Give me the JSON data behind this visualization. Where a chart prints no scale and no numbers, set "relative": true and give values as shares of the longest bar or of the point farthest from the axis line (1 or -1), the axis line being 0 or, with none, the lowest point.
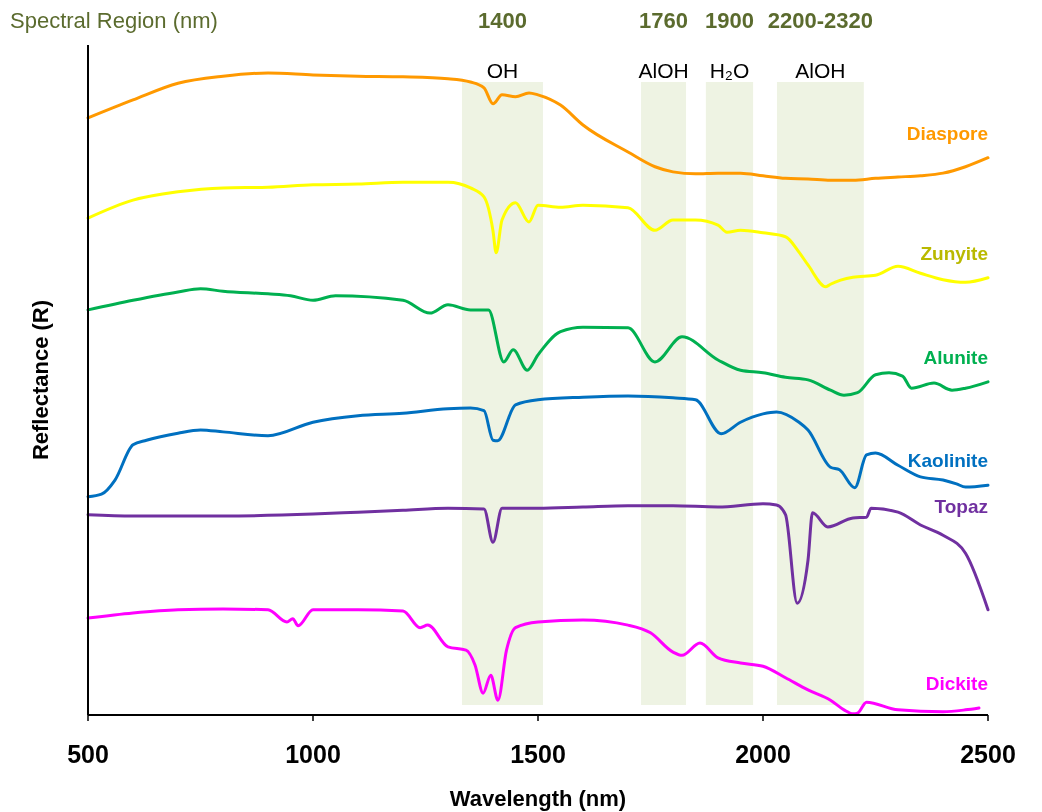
{
  "chart_data": {
    "type": "line",
    "xlabel": "Wavelength (nm)",
    "ylabel": "Reflectance (R)",
    "relative": true,
    "xlim": [
      500,
      2500
    ],
    "xticks": [
      500,
      1000,
      1500,
      2000,
      2500
    ],
    "annotations": [
      "Spectral Region (nm)",
      "1400",
      "1760",
      "1900",
      "2200-2320"
    ],
    "bands": [
      {
        "axis": "x",
        "from": 1331,
        "to": 1511,
        "label": "OH",
        "color": "#eef3e3"
      },
      {
        "axis": "x",
        "from": 1729,
        "to": 1829,
        "label": "AlOH",
        "color": "#eef3e3"
      },
      {
        "axis": "x",
        "from": 1873,
        "to": 1978,
        "label": "H₂O",
        "color": "#eef3e3"
      },
      {
        "axis": "x",
        "from": 2031,
        "to": 2224,
        "label": "AlOH",
        "color": "#eef3e3"
      }
    ],
    "series": [
      {
        "name": "Diaspore",
        "color": "#ff9900",
        "x": [
          500,
          600,
          700,
          800,
          900,
          1000,
          1100,
          1200,
          1300,
          1350,
          1380,
          1400,
          1420,
          1450,
          1480,
          1500,
          1550,
          1600,
          1700,
          1760,
          1800,
          1850,
          1900,
          1950,
          2000,
          2050,
          2100,
          2150,
          2200,
          2250,
          2300,
          2350,
          2400,
          2450,
          2500
        ],
        "values": [
          0.93,
          0.958,
          0.984,
          0.995,
          1,
          0.997,
          0.995,
          0.994,
          0.991,
          0.986,
          0.977,
          0.952,
          0.966,
          0.963,
          0.969,
          0.966,
          0.95,
          0.919,
          0.877,
          0.854,
          0.846,
          0.843,
          0.844,
          0.844,
          0.84,
          0.836,
          0.835,
          0.833,
          0.833,
          0.836,
          0.838,
          0.84,
          0.844,
          0.854,
          0.868
        ]
      },
      {
        "name": "Zunyite",
        "color": "#ffff00",
        "x": [
          500,
          600,
          700,
          800,
          900,
          1000,
          1100,
          1200,
          1300,
          1350,
          1380,
          1400,
          1407,
          1420,
          1450,
          1480,
          1500,
          1550,
          1600,
          1700,
          1760,
          1800,
          1850,
          1900,
          1920,
          1950,
          2000,
          2050,
          2080,
          2100,
          2140,
          2150,
          2200,
          2250,
          2300,
          2350,
          2400,
          2450,
          2500
        ],
        "values": [
          0.774,
          0.802,
          0.815,
          0.821,
          0.822,
          0.826,
          0.827,
          0.83,
          0.83,
          0.821,
          0.807,
          0.754,
          0.72,
          0.771,
          0.798,
          0.768,
          0.794,
          0.791,
          0.794,
          0.79,
          0.755,
          0.771,
          0.771,
          0.763,
          0.752,
          0.755,
          0.751,
          0.745,
          0.721,
          0.701,
          0.667,
          0.671,
          0.682,
          0.685,
          0.699,
          0.688,
          0.678,
          0.674,
          0.681
        ]
      },
      {
        "name": "Alunite",
        "color": "#00b050",
        "x": [
          500,
          600,
          700,
          750,
          800,
          900,
          950,
          1000,
          1050,
          1200,
          1260,
          1300,
          1350,
          1390,
          1424,
          1445,
          1476,
          1500,
          1550,
          1600,
          1700,
          1760,
          1820,
          1900,
          1950,
          2000,
          2050,
          2100,
          2150,
          2180,
          2210,
          2250,
          2280,
          2310,
          2330,
          2380,
          2420,
          2450,
          2500
        ],
        "values": [
          0.631,
          0.646,
          0.659,
          0.664,
          0.66,
          0.656,
          0.653,
          0.646,
          0.653,
          0.646,
          0.626,
          0.639,
          0.631,
          0.631,
          0.55,
          0.569,
          0.537,
          0.561,
          0.597,
          0.604,
          0.603,
          0.55,
          0.589,
          0.553,
          0.537,
          0.533,
          0.526,
          0.522,
          0.506,
          0.498,
          0.502,
          0.53,
          0.533,
          0.528,
          0.509,
          0.517,
          0.506,
          0.509,
          0.519
        ]
      },
      {
        "name": "Kaolinite",
        "color": "#0070c0",
        "x": [
          500,
          530,
          560,
          600,
          630,
          700,
          750,
          800,
          900,
          1000,
          1100,
          1200,
          1300,
          1350,
          1380,
          1400,
          1410,
          1450,
          1500,
          1600,
          1700,
          1800,
          1850,
          1907,
          1950,
          2000,
          2030,
          2080,
          2100,
          2150,
          2170,
          2204,
          2230,
          2250,
          2300,
          2350,
          2400,
          2430,
          2450,
          2500
        ],
        "values": [
          0.34,
          0.344,
          0.366,
          0.421,
          0.428,
          0.439,
          0.444,
          0.441,
          0.435,
          0.456,
          0.466,
          0.47,
          0.477,
          0.478,
          0.474,
          0.428,
          0.427,
          0.483,
          0.491,
          0.495,
          0.497,
          0.494,
          0.491,
          0.438,
          0.456,
          0.469,
          0.472,
          0.456,
          0.444,
          0.386,
          0.382,
          0.354,
          0.405,
          0.408,
          0.389,
          0.371,
          0.366,
          0.36,
          0.355,
          0.358
        ]
      },
      {
        "name": "Topaz",
        "color": "#7030a0",
        "x": [
          500,
          600,
          800,
          1000,
          1100,
          1200,
          1300,
          1380,
          1400,
          1420,
          1500,
          1600,
          1700,
          1800,
          1900,
          2000,
          2030,
          2050,
          2076,
          2100,
          2110,
          2144,
          2200,
          2230,
          2240,
          2300,
          2350,
          2400,
          2450,
          2500
        ],
        "values": [
          0.312,
          0.31,
          0.31,
          0.313,
          0.316,
          0.319,
          0.322,
          0.321,
          0.269,
          0.322,
          0.322,
          0.324,
          0.326,
          0.326,
          0.324,
          0.329,
          0.327,
          0.312,
          0.174,
          0.241,
          0.315,
          0.293,
          0.307,
          0.308,
          0.322,
          0.316,
          0.296,
          0.28,
          0.252,
          0.164
        ]
      },
      {
        "name": "Dickite",
        "color": "#ff00ff",
        "x": [
          500,
          600,
          700,
          800,
          900,
          942,
          955,
          967,
          1000,
          1100,
          1200,
          1238,
          1255,
          1300,
          1340,
          1360,
          1378,
          1395,
          1411,
          1430,
          1450,
          1500,
          1600,
          1700,
          1750,
          1800,
          1820,
          1860,
          1900,
          1950,
          2000,
          2050,
          2100,
          2150,
          2180,
          2200,
          2210,
          2230,
          2300,
          2400,
          2450,
          2480
        ],
        "values": [
          0.151,
          0.159,
          0.164,
          0.165,
          0.164,
          0.145,
          0.15,
          0.139,
          0.164,
          0.164,
          0.162,
          0.136,
          0.14,
          0.106,
          0.101,
          0.078,
          0.034,
          0.062,
          0.023,
          0.101,
          0.136,
          0.145,
          0.148,
          0.14,
          0.128,
          0.098,
          0.093,
          0.112,
          0.089,
          0.081,
          0.076,
          0.058,
          0.039,
          0.023,
          0.008,
          0.002,
          0.003,
          0.02,
          0.008,
          0.005,
          0.008,
          0.011
        ]
      }
    ]
  }
}
